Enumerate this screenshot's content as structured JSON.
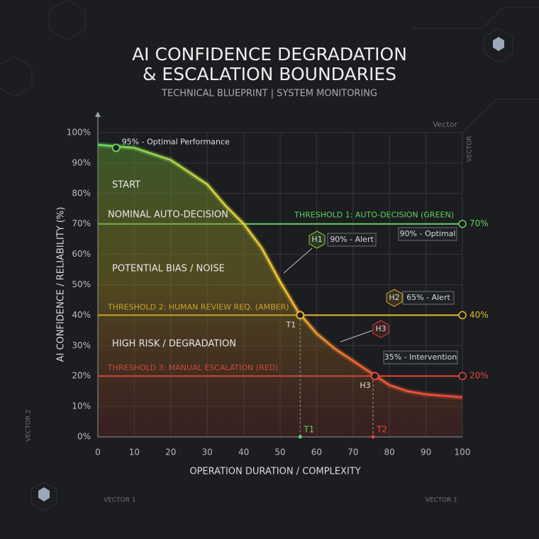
{
  "header": {
    "title_line1": "AI CONFIDENCE DEGRADATION",
    "title_line2": "& ESCALATION BOUNDARIES",
    "subtitle": "TECHNICAL BLUEPRINT | SYSTEM MONITORING"
  },
  "decor_labels": [
    "Vector",
    "VECTOR",
    "VECTOR 2",
    "VECTOR 1",
    "VECTOR 1"
  ],
  "chart_data": {
    "type": "line",
    "x_label": "OPERATION DURATION / COMPLEXITY",
    "y_label": "AI CONFIDENCE / RELIABILITY (%)",
    "x": [
      0,
      5,
      10,
      15,
      20,
      25,
      30,
      35,
      40,
      45,
      50,
      55,
      60,
      65,
      70,
      75,
      80,
      85,
      90,
      95,
      100
    ],
    "values": [
      96,
      95.5,
      95,
      93,
      91,
      87,
      83,
      76,
      70,
      62,
      51,
      41,
      34,
      29,
      25,
      21,
      17,
      15,
      14,
      13.5,
      13
    ],
    "xlim": [
      0,
      100
    ],
    "ylim": [
      0,
      100
    ],
    "xticks": [
      0,
      10,
      20,
      30,
      40,
      50,
      60,
      70,
      80,
      90,
      100
    ],
    "yticks": [
      {
        "value": 0,
        "label": "0%"
      },
      {
        "value": 10,
        "label": "10%"
      },
      {
        "value": 20,
        "label": "20%"
      },
      {
        "value": 30,
        "label": "30%"
      },
      {
        "value": 40,
        "label": "40%"
      },
      {
        "value": 50,
        "label": "50%"
      },
      {
        "value": 60,
        "label": "60%"
      },
      {
        "value": 70,
        "label": "70%"
      },
      {
        "value": 80,
        "label": "80%"
      },
      {
        "value": 90,
        "label": "90%"
      },
      {
        "value": 100,
        "label": "100%"
      }
    ],
    "grid": true,
    "thresholds": [
      {
        "name": "THRESHOLD 1: AUTO-DECISION (GREEN)",
        "value": 70,
        "value_label": "70%",
        "color": "#5fd35f"
      },
      {
        "name": "THRESHOLD 2: HUMAN REVIEW REQ. (AMBER)",
        "value": 40,
        "value_label": "40%",
        "color": "#e8b830"
      },
      {
        "name": "THRESHOLD 3: MANUAL ESCALATION (RED)",
        "value": 20,
        "value_label": "20%",
        "color": "#e8453c"
      }
    ],
    "zones": [
      "START",
      "NOMINAL AUTO-DECISION",
      "POTENTIAL BIAS / NOISE",
      "HIGH RISK / DEGRADATION"
    ],
    "points": [
      {
        "label": "95% - Optimal Performance",
        "x": 5,
        "y": 95
      },
      {
        "label": "T1",
        "x": 55.5,
        "y": 40
      },
      {
        "label": "H3",
        "x": 76,
        "y": 20
      }
    ],
    "markers": [
      {
        "label": "T1",
        "x": 55.5
      },
      {
        "label": "T2",
        "x": 75.5
      }
    ],
    "annotations": [
      "90% - Optimal",
      "H1",
      "90% - Alert",
      "H2",
      "65% - Alert",
      "H3",
      "35% - Intervention"
    ]
  }
}
